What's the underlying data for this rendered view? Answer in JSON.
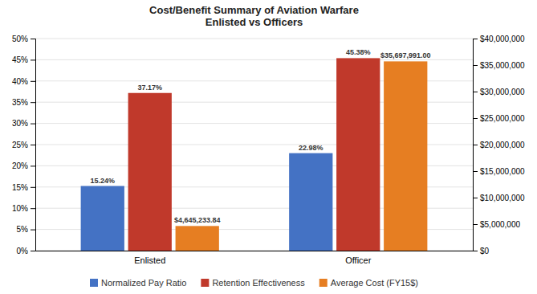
{
  "chart_data": {
    "type": "bar",
    "title": "Cost/Benefit Summary of Aviation Warfare\nEnlisted vs Officers",
    "categories": [
      "Enlisted",
      "Officer"
    ],
    "series": [
      {
        "name": "Normalized Pay Ratio",
        "color": "#4472C4",
        "values": [
          15.24,
          22.98
        ],
        "value_labels": [
          "15.24%",
          "22.98%"
        ]
      },
      {
        "name": "Retention Effectiveness",
        "color": "#C0392B",
        "values": [
          37.17,
          45.38
        ],
        "value_labels": [
          "37.17%",
          "45.38%"
        ]
      },
      {
        "name": "Average Cost (FY15$)",
        "color": "#E67E22",
        "axis": "y2",
        "values": [
          4645233.84,
          35697991.0
        ],
        "value_labels": [
          "$4,645,233.84",
          "$35,697,991.00"
        ]
      }
    ],
    "ylim": [
      0,
      50
    ],
    "yticks": [
      {
        "value": 0,
        "label": "0%"
      },
      {
        "value": 5,
        "label": "5%"
      },
      {
        "value": 10,
        "label": "10%"
      },
      {
        "value": 15,
        "label": "15%"
      },
      {
        "value": 20,
        "label": "20%"
      },
      {
        "value": 25,
        "label": "25%"
      },
      {
        "value": 30,
        "label": "30%"
      },
      {
        "value": 35,
        "label": "35%"
      },
      {
        "value": 40,
        "label": "40%"
      },
      {
        "value": 45,
        "label": "45%"
      },
      {
        "value": 50,
        "label": "50%"
      }
    ],
    "y2lim": [
      0,
      40000000
    ],
    "y2ticks": [
      {
        "value": 0,
        "label": "$0"
      },
      {
        "value": 5000000,
        "label": "$5,000,000"
      },
      {
        "value": 10000000,
        "label": "$10,000,000"
      },
      {
        "value": 15000000,
        "label": "$15,000,000"
      },
      {
        "value": 20000000,
        "label": "$20,000,000"
      },
      {
        "value": 25000000,
        "label": "$25,000,000"
      },
      {
        "value": 30000000,
        "label": "$30,000,000"
      },
      {
        "value": 35000000,
        "label": "$35,000,000"
      },
      {
        "value": 40000000,
        "label": "$40,000,000"
      }
    ],
    "grid": true,
    "data_labels": true,
    "legend": "bottom"
  }
}
